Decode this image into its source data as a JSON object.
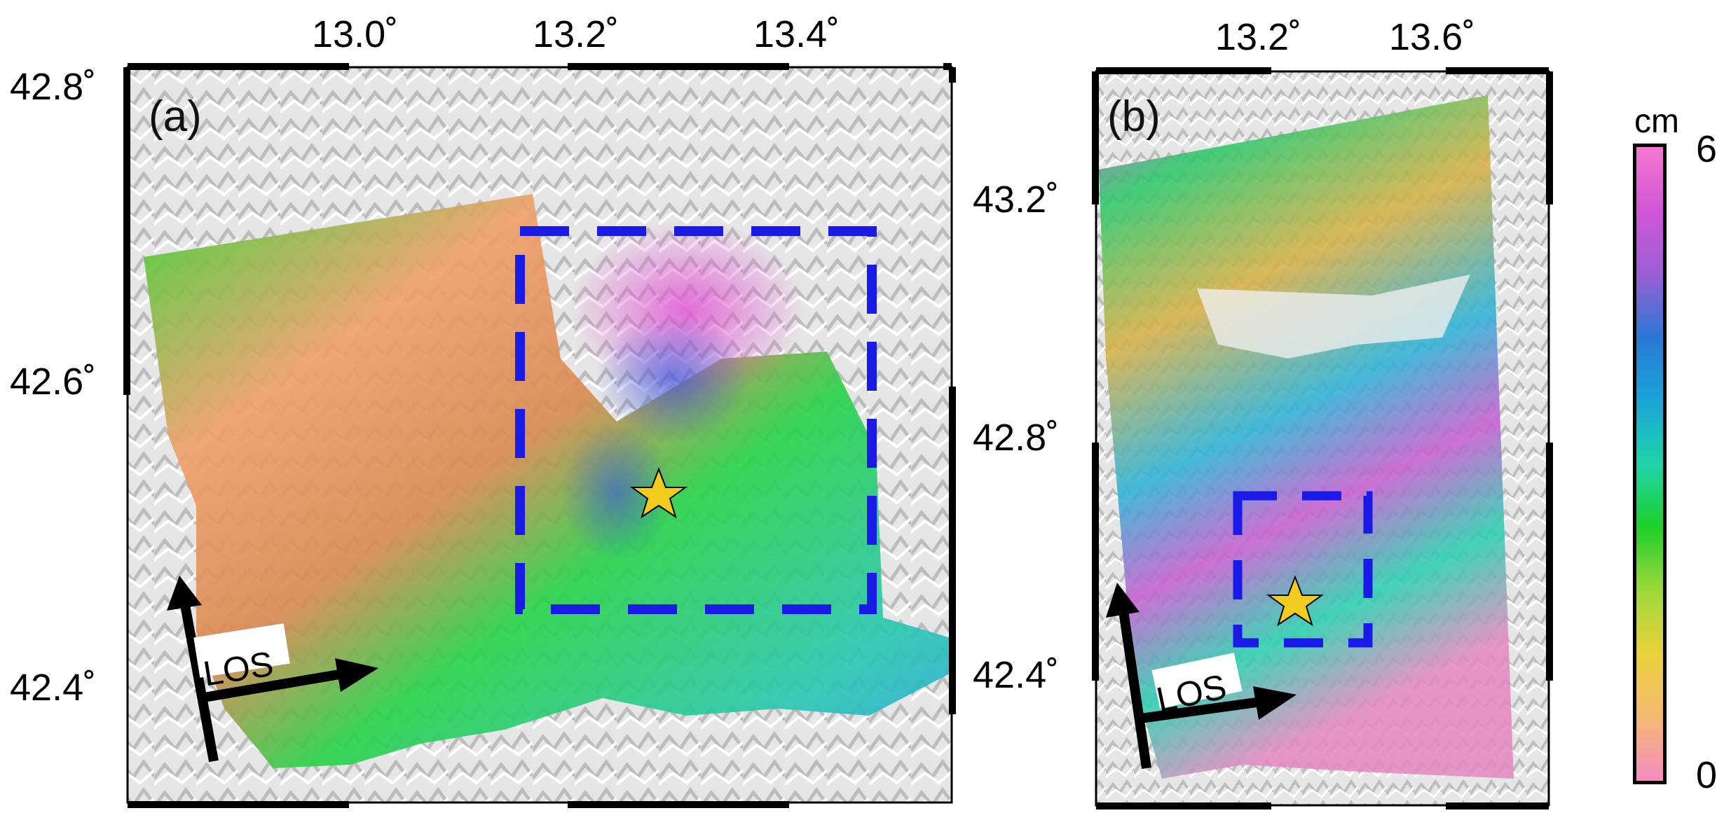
{
  "panels": [
    {
      "id": "a",
      "label": "(a)",
      "lon_ticks": [
        "13.0˚",
        "13.2˚",
        "13.4˚"
      ],
      "lat_ticks": [
        "42.8˚",
        "42.6˚",
        "42.4˚"
      ],
      "los_label": "LOS"
    },
    {
      "id": "b",
      "label": "(b)",
      "lon_ticks": [
        "13.2˚",
        "13.6˚"
      ],
      "lat_ticks": [
        "43.2˚",
        "42.8˚",
        "42.4˚"
      ],
      "los_label": "LOS"
    }
  ],
  "colorbar": {
    "unit": "cm",
    "min_label": "0",
    "max_label": "6",
    "stops": [
      "#f58bc0",
      "#f5b872",
      "#e9d23a",
      "#9ed83a",
      "#1fcf2a",
      "#1fd3a8",
      "#1aa4d8",
      "#2a78d6",
      "#9b5fd4",
      "#d255d8",
      "#f477cf"
    ]
  },
  "colors": {
    "dashed_box": "#1a1ae6",
    "epicenter_star": "#f2cc1d",
    "frame": "#000000"
  }
}
